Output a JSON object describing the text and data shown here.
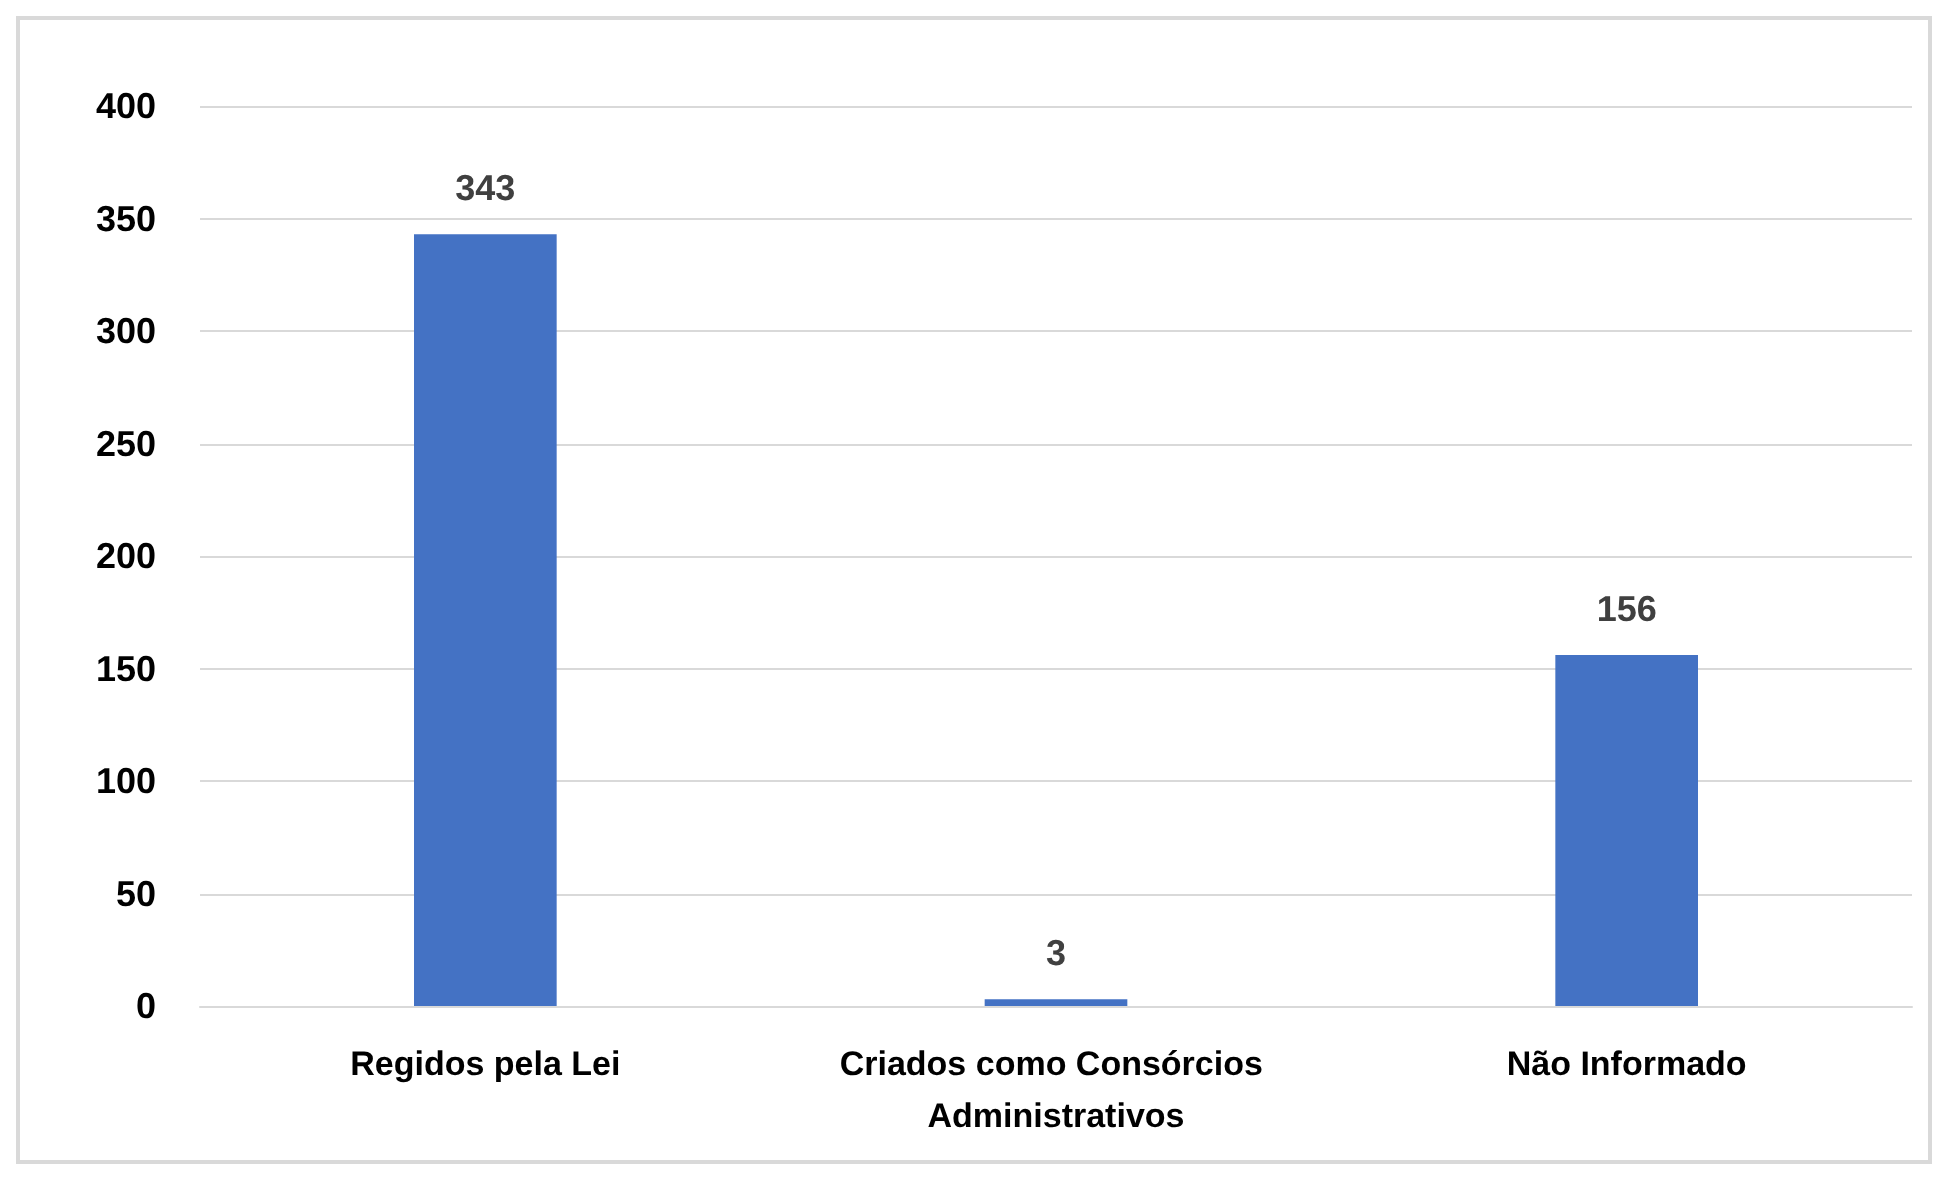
{
  "chart_data": {
    "type": "bar",
    "categories": [
      "Regidos pela Lei",
      "Criados como Consórcios Administrativos",
      "Não Informado"
    ],
    "values": [
      343,
      3,
      156
    ],
    "color": "#4472c4",
    "ylim": [
      0,
      400
    ],
    "yticks": [
      0,
      50,
      100,
      150,
      200,
      250,
      300,
      350,
      400
    ],
    "grid": "y",
    "data_labels": true
  }
}
